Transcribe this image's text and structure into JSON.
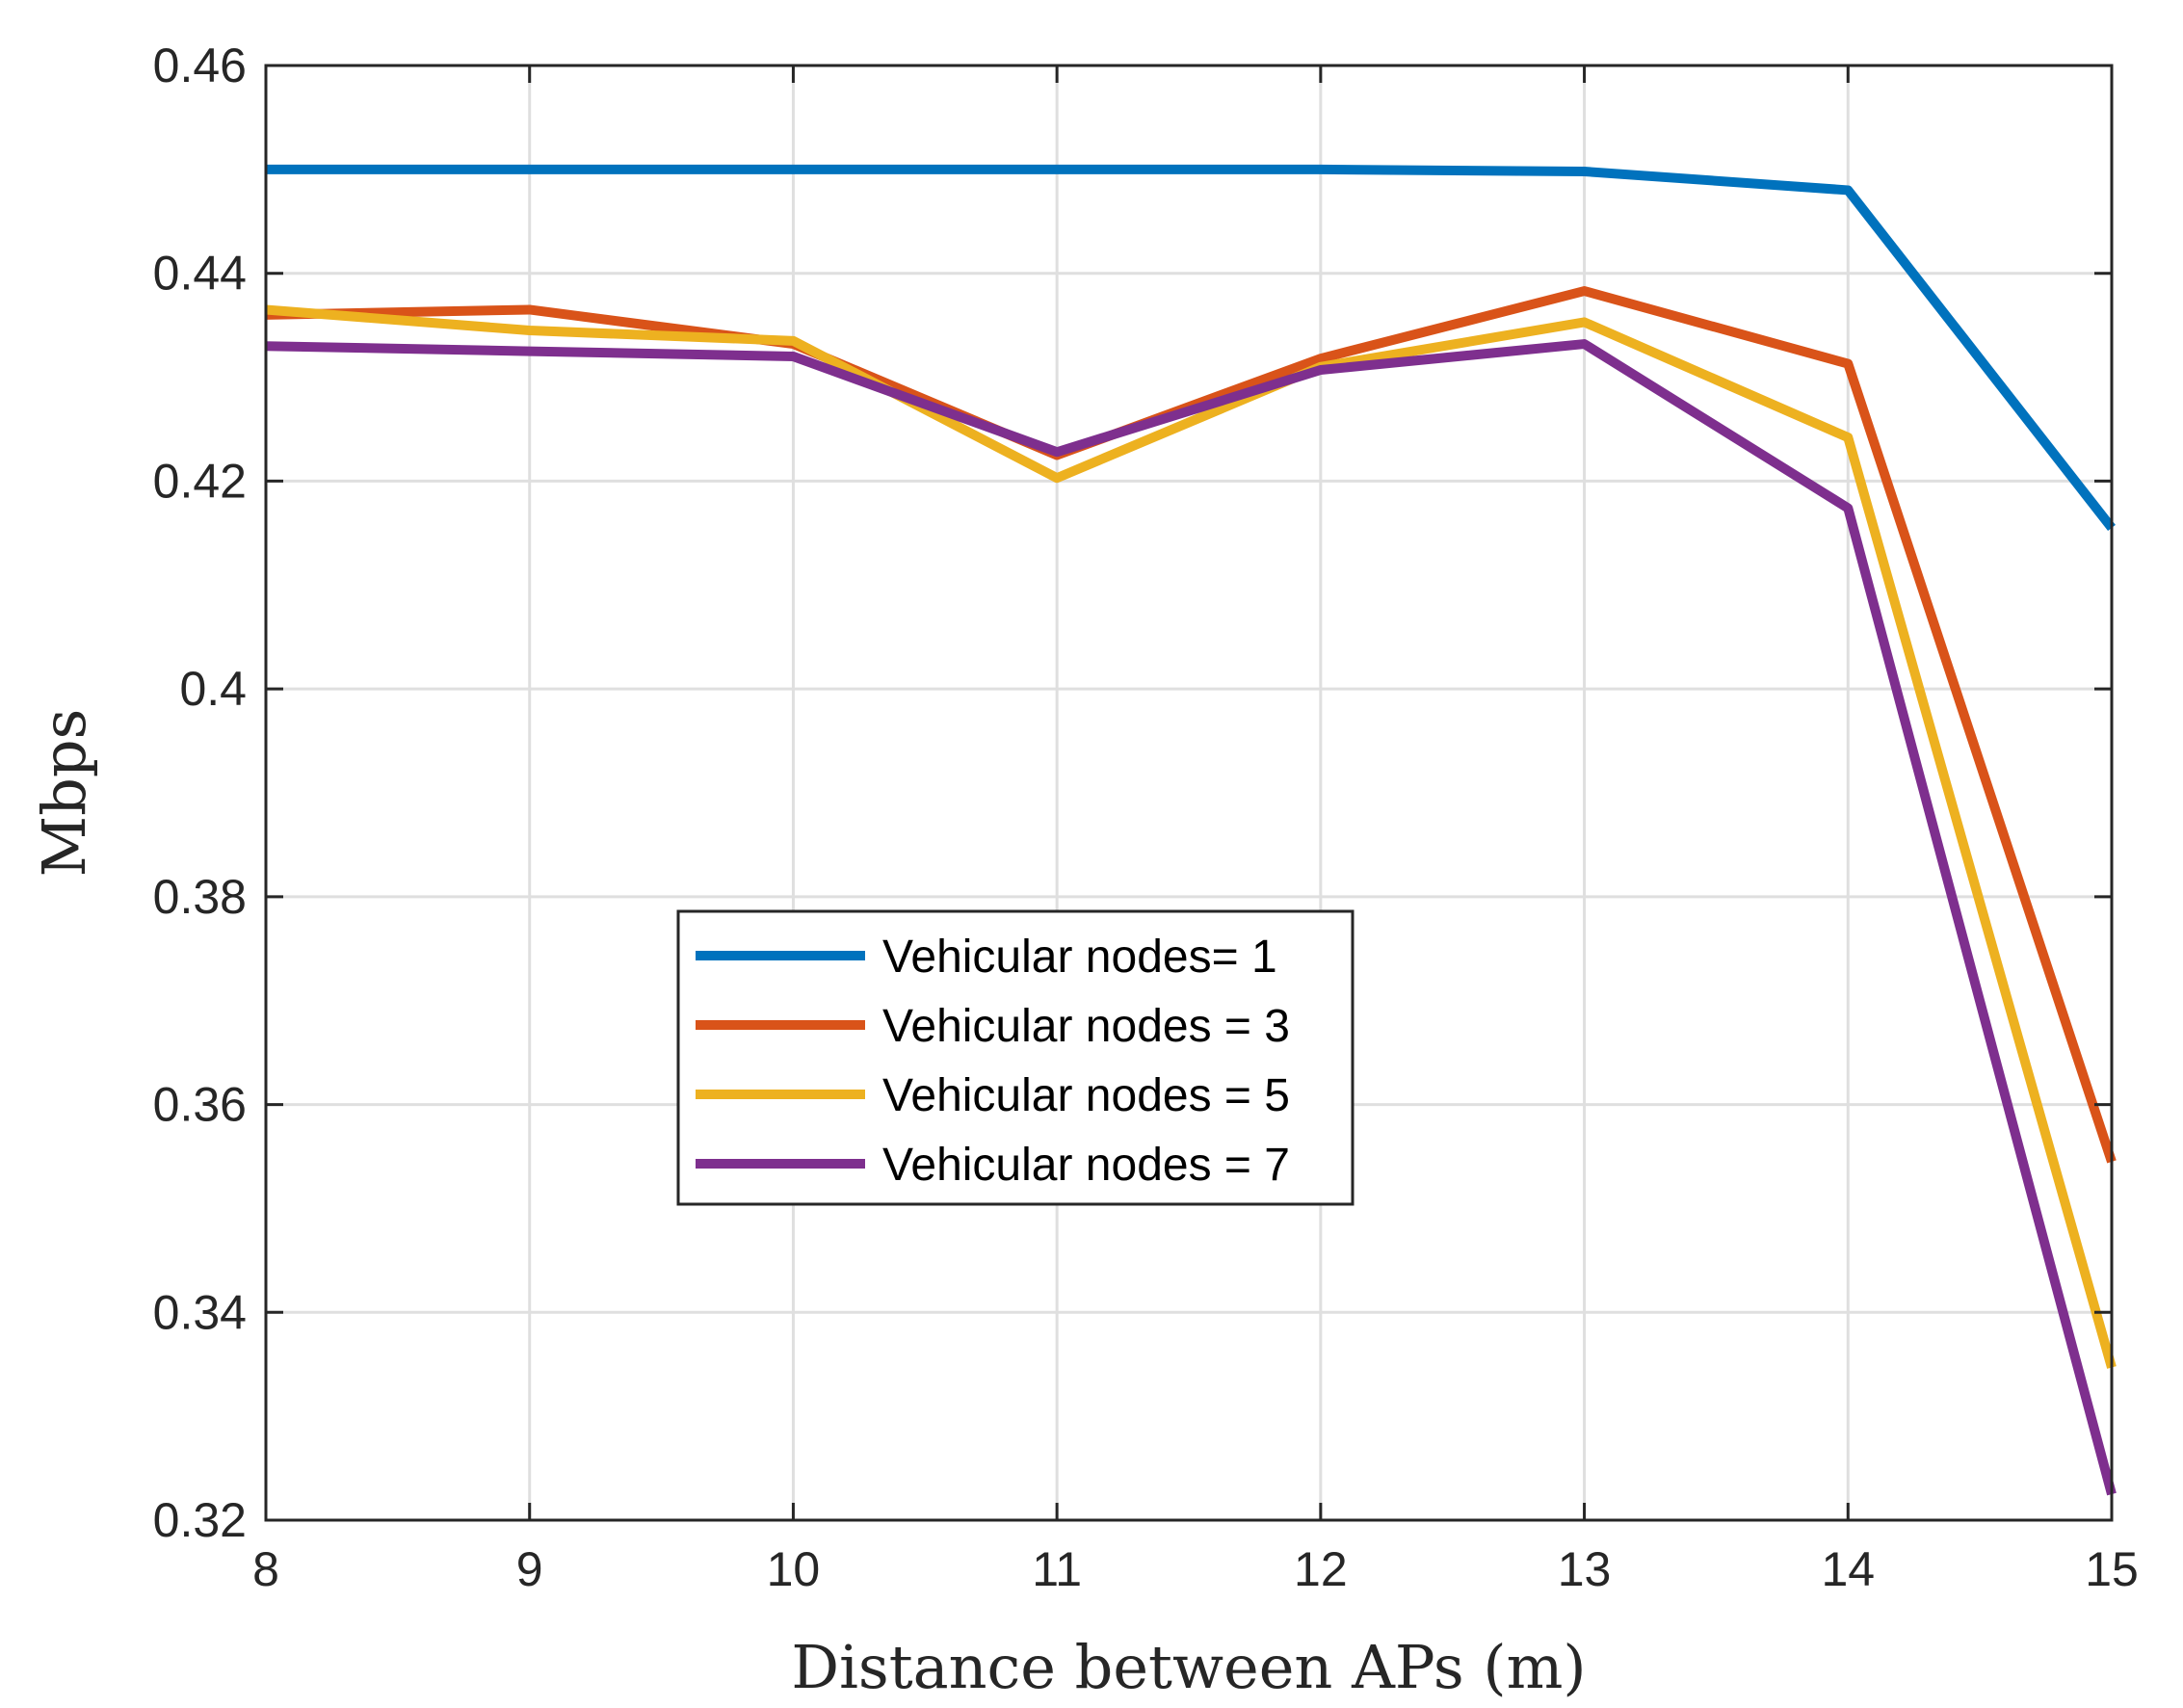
{
  "chart_data": {
    "type": "line",
    "title": "",
    "xlabel": "Distance between APs (m)",
    "ylabel": "Mbps",
    "xlim": [
      8,
      15
    ],
    "ylim": [
      0.32,
      0.46
    ],
    "xticks": [
      8,
      9,
      10,
      11,
      12,
      13,
      14,
      15
    ],
    "yticks": [
      0.32,
      0.34,
      0.36,
      0.38,
      0.4,
      0.42,
      0.44,
      0.46
    ],
    "xtick_labels": [
      "8",
      "9",
      "10",
      "11",
      "12",
      "13",
      "14",
      "15"
    ],
    "ytick_labels": [
      "0.32",
      "0.34",
      "0.36",
      "0.38",
      "0.4",
      "0.42",
      "0.44",
      "0.46"
    ],
    "grid": true,
    "legend_position": "center-left",
    "x": [
      8,
      9,
      10,
      11,
      12,
      13,
      14,
      15
    ],
    "series": [
      {
        "name": "Vehicular nodes= 1",
        "color": "#0072BD",
        "values": [
          0.45,
          0.45,
          0.45,
          0.45,
          0.45,
          0.4498,
          0.448,
          0.4155
        ]
      },
      {
        "name": "Vehicular nodes = 3",
        "color": "#D95319",
        "values": [
          0.436,
          0.4365,
          0.4332,
          0.4225,
          0.4318,
          0.4383,
          0.4313,
          0.3545
        ]
      },
      {
        "name": "Vehicular nodes = 5",
        "color": "#EDB120",
        "values": [
          0.4365,
          0.4345,
          0.4335,
          0.4203,
          0.431,
          0.4353,
          0.4242,
          0.3347
        ]
      },
      {
        "name": "Vehicular nodes = 7",
        "color": "#7E2F8E",
        "values": [
          0.433,
          0.4325,
          0.432,
          0.4228,
          0.4307,
          0.4332,
          0.4174,
          0.3225
        ]
      }
    ]
  }
}
